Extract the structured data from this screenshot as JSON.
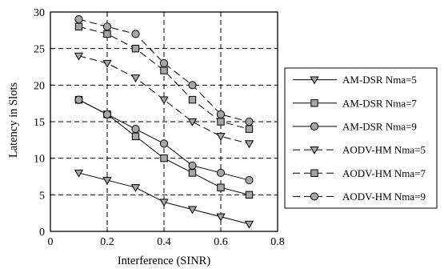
{
  "chart_data": {
    "type": "line",
    "xlabel": "Interference (SINR)",
    "ylabel": "Latency in Slots",
    "xlim": [
      0,
      0.8
    ],
    "ylim": [
      0,
      30
    ],
    "xticks": [
      0,
      0.2,
      0.4,
      0.6,
      0.8
    ],
    "xtick_labels": [
      "0",
      "0.2",
      "0.4",
      "0.6",
      "0.8"
    ],
    "yticks": [
      0,
      5,
      10,
      15,
      20,
      25,
      30
    ],
    "ytick_labels": [
      "0",
      "5",
      "10",
      "15",
      "20",
      "25",
      "30"
    ],
    "grid": true,
    "grid_style": "dashed",
    "legend_position": "right",
    "x": [
      0.1,
      0.2,
      0.3,
      0.4,
      0.5,
      0.6,
      0.7
    ],
    "series": [
      {
        "name": "AM-DSR Nma=5",
        "marker": "triangle-down",
        "line": "solid",
        "values": [
          8,
          7,
          6,
          4,
          3,
          2,
          1
        ]
      },
      {
        "name": "AM-DSR Nma=7",
        "marker": "square",
        "line": "solid",
        "values": [
          18,
          16,
          13,
          10,
          8,
          6,
          5
        ]
      },
      {
        "name": "AM-DSR Nma=9",
        "marker": "circle",
        "line": "solid",
        "values": [
          18,
          16,
          14,
          12,
          9,
          8,
          7
        ]
      },
      {
        "name": "AODV-HM Nma=5",
        "marker": "triangle-down",
        "line": "dashed",
        "values": [
          24,
          23,
          21,
          18,
          15,
          13,
          12
        ]
      },
      {
        "name": "AODV-HM Nma=7",
        "marker": "square",
        "line": "dashed",
        "values": [
          28,
          27,
          25,
          22,
          18,
          15,
          14
        ]
      },
      {
        "name": "AODV-HM Nma=9",
        "marker": "circle",
        "line": "dashed",
        "values": [
          29,
          28,
          27,
          23,
          20,
          16,
          15
        ]
      }
    ],
    "colors": {
      "line": "#000000",
      "marker_fill": "#a6a6a6",
      "grid": "#000000",
      "background": "#ffffff"
    }
  }
}
